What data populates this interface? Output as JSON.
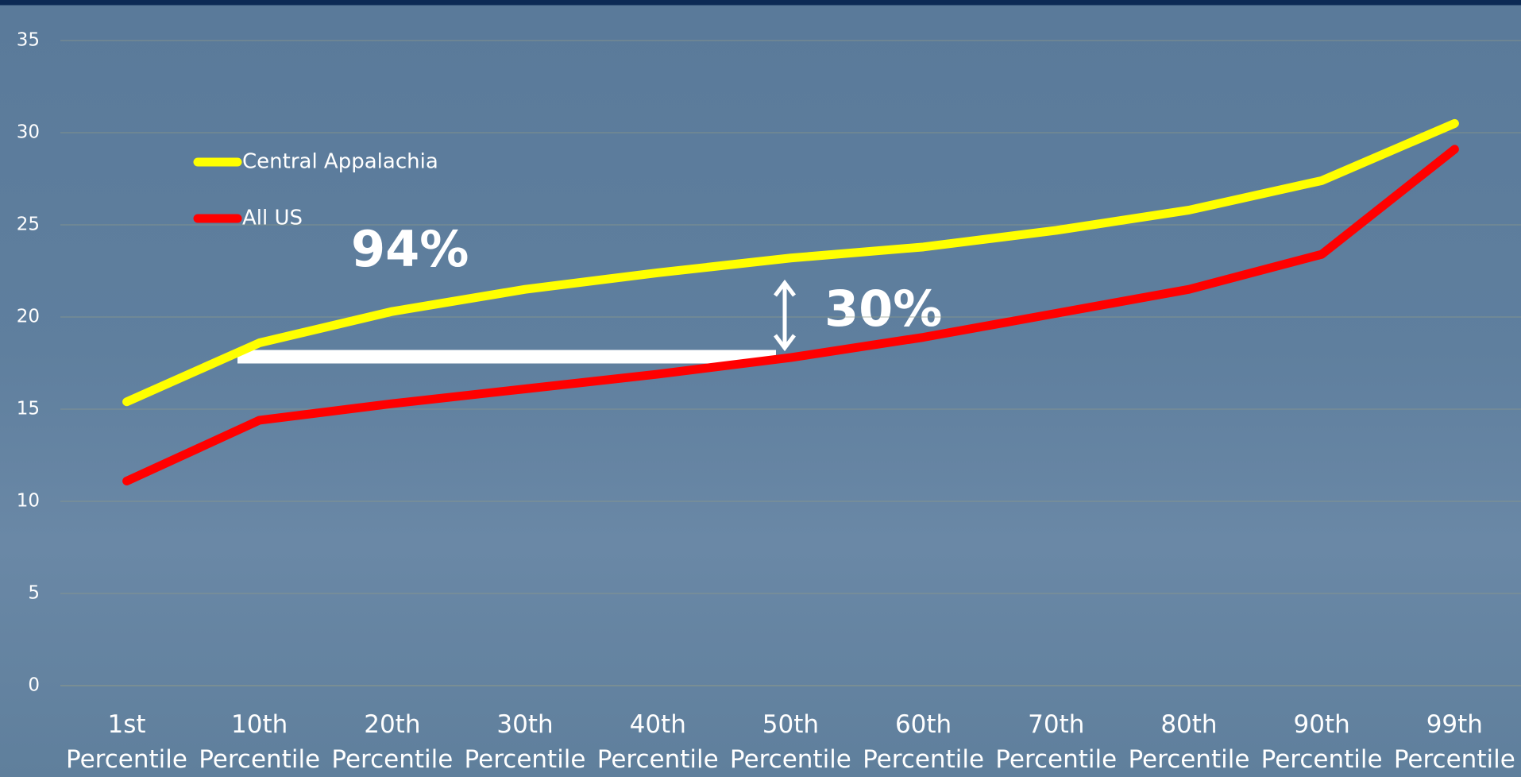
{
  "chart_data": {
    "type": "line",
    "categories": [
      "1st Percentile",
      "10th Percentile",
      "20th Percentile",
      "30th Percentile",
      "40th Percentile",
      "50th Percentile",
      "60th Percentile",
      "70th Percentile",
      "80th Percentile",
      "90th Percentile",
      "99th Percentile"
    ],
    "series": [
      {
        "name": "Central Appalachia",
        "color": "#ffff00",
        "values": [
          15.4,
          18.6,
          20.3,
          21.5,
          22.4,
          23.2,
          23.8,
          24.7,
          25.8,
          27.4,
          30.5
        ]
      },
      {
        "name": "All US",
        "color": "#ff0000",
        "values": [
          11.1,
          14.4,
          15.3,
          16.1,
          16.9,
          17.8,
          18.9,
          20.2,
          21.5,
          23.4,
          29.1
        ]
      }
    ],
    "ylim": [
      0,
      35
    ],
    "yticks": [
      0,
      5,
      10,
      15,
      20,
      25,
      30,
      35
    ],
    "grid": true,
    "annotations": [
      "94%",
      "30%"
    ]
  }
}
